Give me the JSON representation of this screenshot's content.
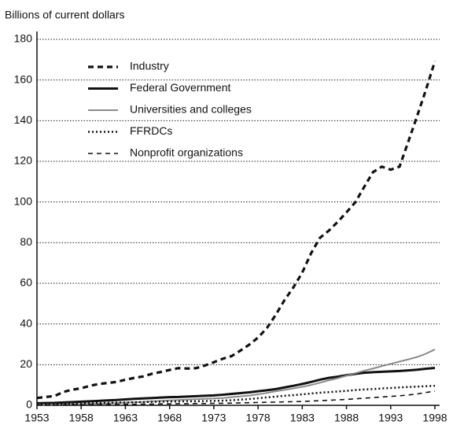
{
  "chart_data": {
    "type": "line",
    "y_label": "Billions of current dollars",
    "x": [
      1953,
      1954,
      1955,
      1956,
      1957,
      1958,
      1959,
      1960,
      1961,
      1962,
      1963,
      1964,
      1965,
      1966,
      1967,
      1968,
      1969,
      1970,
      1971,
      1972,
      1973,
      1974,
      1975,
      1976,
      1977,
      1978,
      1979,
      1980,
      1981,
      1982,
      1983,
      1984,
      1985,
      1986,
      1987,
      1988,
      1989,
      1990,
      1991,
      1992,
      1993,
      1994,
      1995,
      1996,
      1997,
      1998
    ],
    "xlim": [
      1953,
      1998
    ],
    "xticks": [
      1953,
      1958,
      1963,
      1968,
      1973,
      1978,
      1983,
      1988,
      1993,
      1998
    ],
    "ylim": [
      0,
      180
    ],
    "yticks": [
      0,
      20,
      40,
      60,
      80,
      100,
      120,
      140,
      160,
      180
    ],
    "grid": true,
    "legend": "upper left",
    "series": [
      {
        "name": "Industry",
        "color": "#111111",
        "style": "dashed-thick",
        "values": [
          3.6,
          4.1,
          4.6,
          6.6,
          7.7,
          8.4,
          9.6,
          10.5,
          11,
          11.5,
          12.6,
          13.5,
          14.2,
          15.5,
          16.4,
          17.4,
          18.3,
          18.1,
          18.3,
          19.6,
          21.2,
          22.9,
          24.2,
          26.9,
          29.8,
          33.3,
          38,
          44.5,
          51.8,
          58,
          65.3,
          74.8,
          82.4,
          85.9,
          90.2,
          94.9,
          99.9,
          107.4,
          114.7,
          117.4,
          115.9,
          117.4,
          129.8,
          142.4,
          155.4,
          169.3
        ]
      },
      {
        "name": "Federal Government",
        "color": "#111111",
        "style": "solid-thick",
        "values": [
          1.0,
          1.1,
          1.2,
          1.4,
          1.6,
          1.8,
          2.0,
          2.2,
          2.4,
          2.6,
          2.9,
          3.2,
          3.4,
          3.6,
          3.8,
          4.0,
          4.1,
          4.3,
          4.5,
          4.7,
          4.9,
          5.2,
          5.6,
          6.0,
          6.4,
          6.9,
          7.4,
          8.0,
          8.8,
          9.6,
          10.5,
          11.5,
          12.6,
          13.5,
          14.1,
          14.8,
          15.5,
          16.0,
          16.3,
          16.5,
          16.7,
          16.9,
          17.2,
          17.5,
          18.0,
          18.4
        ]
      },
      {
        "name": "Universities and colleges",
        "color": "#8a8a8a",
        "style": "solid-thin",
        "values": [
          0.3,
          0.3,
          0.4,
          0.4,
          0.5,
          0.6,
          0.7,
          0.8,
          0.9,
          1.1,
          1.3,
          1.5,
          1.7,
          2.0,
          2.2,
          2.4,
          2.6,
          2.8,
          3.0,
          3.2,
          3.4,
          3.6,
          4.0,
          4.4,
          4.8,
          5.4,
          6.1,
          6.9,
          7.6,
          8.3,
          9.1,
          10.0,
          11.1,
          12.3,
          13.3,
          14.6,
          15.8,
          17.0,
          18.1,
          19.3,
          20.4,
          21.5,
          22.6,
          23.8,
          25.4,
          27.5
        ]
      },
      {
        "name": "FFRDCs",
        "color": "#111111",
        "style": "dotted",
        "values": [
          0.3,
          0.3,
          0.4,
          0.5,
          0.6,
          0.8,
          1.0,
          1.1,
          1.2,
          1.3,
          1.4,
          1.5,
          1.6,
          1.7,
          1.8,
          1.9,
          1.9,
          2.0,
          2.0,
          2.1,
          2.2,
          2.3,
          2.5,
          2.8,
          3.1,
          3.5,
          3.9,
          4.3,
          4.7,
          5.0,
          5.4,
          5.8,
          6.2,
          6.5,
          6.8,
          7.1,
          7.5,
          7.8,
          8.0,
          8.3,
          8.5,
          8.8,
          9.0,
          9.2,
          9.4,
          9.6
        ]
      },
      {
        "name": "Nonprofit organizations",
        "color": "#111111",
        "style": "dashed-thin",
        "values": [
          0.1,
          0.1,
          0.1,
          0.2,
          0.2,
          0.2,
          0.3,
          0.3,
          0.4,
          0.4,
          0.5,
          0.5,
          0.6,
          0.6,
          0.7,
          0.7,
          0.8,
          0.8,
          0.9,
          0.9,
          1.0,
          1.0,
          1.1,
          1.2,
          1.3,
          1.4,
          1.5,
          1.6,
          1.7,
          1.8,
          1.9,
          2.1,
          2.3,
          2.5,
          2.7,
          2.9,
          3.2,
          3.5,
          3.8,
          4.1,
          4.4,
          4.7,
          5.1,
          5.6,
          6.3,
          7.0
        ]
      }
    ]
  }
}
